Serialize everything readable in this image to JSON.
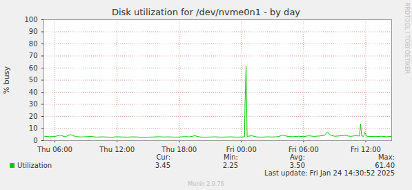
{
  "chart_data": {
    "type": "line",
    "title": "Disk utilization for /dev/nvme0n1 - by day",
    "ylabel": "% busy",
    "x": [
      5,
      5.5,
      6,
      6.5,
      7,
      7.5,
      8,
      8.5,
      9,
      9.5,
      10,
      10.5,
      11,
      11.5,
      12,
      12.5,
      13,
      13.5,
      14,
      14.5,
      15,
      15.5,
      16,
      16.5,
      17,
      17.5,
      18,
      18.5,
      19,
      19.5,
      20,
      20.5,
      21,
      21.5,
      22,
      22.5,
      23,
      23.5,
      24,
      24.3,
      24.35,
      24.45,
      24.55,
      25,
      25.5,
      26,
      26.5,
      27,
      27.5,
      28,
      28.5,
      29,
      29.5,
      30,
      30.5,
      31,
      31.5,
      32,
      32.3,
      32.6,
      33,
      33.5,
      34,
      34.5,
      35,
      35.4,
      35.5,
      35.6,
      35.8,
      35.9,
      36.1,
      36.5,
      37,
      37.5,
      38,
      38.5
    ],
    "series": [
      {
        "name": "Utilization",
        "color": "#00cc00",
        "values": [
          3.6,
          3.2,
          3.4,
          4.5,
          3.1,
          5.0,
          3.3,
          3.0,
          3.2,
          3.4,
          2.9,
          3.1,
          3.0,
          2.8,
          3.2,
          3.0,
          2.9,
          3.1,
          3.0,
          2.25,
          2.9,
          3.0,
          3.2,
          3.0,
          3.1,
          2.9,
          3.0,
          3.3,
          3.1,
          4.0,
          3.0,
          2.8,
          3.0,
          3.1,
          2.9,
          3.0,
          3.1,
          2.9,
          3.0,
          3.2,
          30,
          61.4,
          3.5,
          4.0,
          3.0,
          2.9,
          3.1,
          3.0,
          3.2,
          4.5,
          3.4,
          3.2,
          3.6,
          3.3,
          4.0,
          3.5,
          3.8,
          4.2,
          7.2,
          4.5,
          3.6,
          3.9,
          4.3,
          3.5,
          4.0,
          3.8,
          13.6,
          4.0,
          3.5,
          6.8,
          3.6,
          3.4,
          3.3,
          3.6,
          3.2,
          3.45
        ]
      }
    ],
    "xlim": [
      4.93,
      38.5
    ],
    "xticks": [
      {
        "value": 6,
        "label": "Thu 06:00"
      },
      {
        "value": 12,
        "label": "Thu 12:00"
      },
      {
        "value": 18,
        "label": "Thu 18:00"
      },
      {
        "value": 24,
        "label": "Fri 00:00"
      },
      {
        "value": 30,
        "label": "Fri 06:00"
      },
      {
        "value": 36,
        "label": "Fri 12:00"
      }
    ],
    "ylim": [
      0,
      100
    ],
    "yticks": [
      0,
      10,
      20,
      30,
      40,
      50,
      60,
      70,
      80,
      90,
      100
    ],
    "grid": true,
    "legend_stats": {
      "labels": [
        "Cur:",
        "Min:",
        "Avg:",
        "Max:"
      ],
      "values": [
        3.45,
        2.25,
        3.5,
        61.4
      ],
      "value_labels": [
        "3.45",
        "2.25",
        "3.50",
        "61.40"
      ]
    },
    "last_update": "Last update: Fri Jan 24 14:30:52 2025",
    "watermark": "RRDTOOL / TOBI OETIKER",
    "footer": "Munin 2.0.76"
  }
}
